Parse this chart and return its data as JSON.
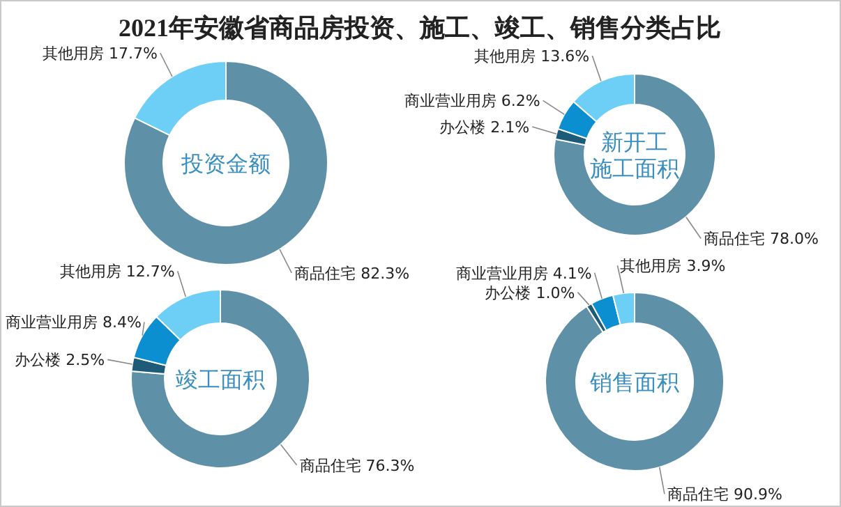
{
  "chart_data": [
    {
      "type": "donut",
      "title": "投资金额",
      "annotations": [
        "2021年安徽省商品房投资、施工、竣工、销售分类占比"
      ],
      "categories": [
        "商品住宅",
        "其他用房"
      ],
      "values": [
        82.3,
        17.7
      ],
      "value_labels": [
        "82.3%",
        "17.7%"
      ],
      "colors": [
        "#5e90a8",
        "#6dcff6"
      ]
    },
    {
      "type": "donut",
      "title": "新开工施工面积",
      "categories": [
        "商品住宅",
        "办公楼",
        "商业营业用房",
        "其他用房"
      ],
      "values": [
        78.0,
        2.1,
        6.2,
        13.6
      ],
      "value_labels": [
        "78.0%",
        "2.1%",
        "6.2%",
        "13.6%"
      ],
      "colors": [
        "#5e90a8",
        "#1d5b79",
        "#0b8fd0",
        "#6dcff6"
      ]
    },
    {
      "type": "donut",
      "title": "竣工面积",
      "categories": [
        "商品住宅",
        "办公楼",
        "商业营业用房",
        "其他用房"
      ],
      "values": [
        76.3,
        2.5,
        8.4,
        12.7
      ],
      "value_labels": [
        "76.3%",
        "2.5%",
        "8.4%",
        "12.7%"
      ],
      "colors": [
        "#5e90a8",
        "#1d5b79",
        "#0b8fd0",
        "#6dcff6"
      ]
    },
    {
      "type": "donut",
      "title": "销售面积",
      "categories": [
        "商品住宅",
        "办公楼",
        "商业营业用房",
        "其他用房"
      ],
      "values": [
        90.9,
        1.0,
        4.1,
        3.9
      ],
      "value_labels": [
        "90.9%",
        "1.0%",
        "4.1%",
        "3.9%"
      ],
      "colors": [
        "#5e90a8",
        "#1d5b79",
        "#0b8fd0",
        "#6dcff6"
      ]
    }
  ]
}
